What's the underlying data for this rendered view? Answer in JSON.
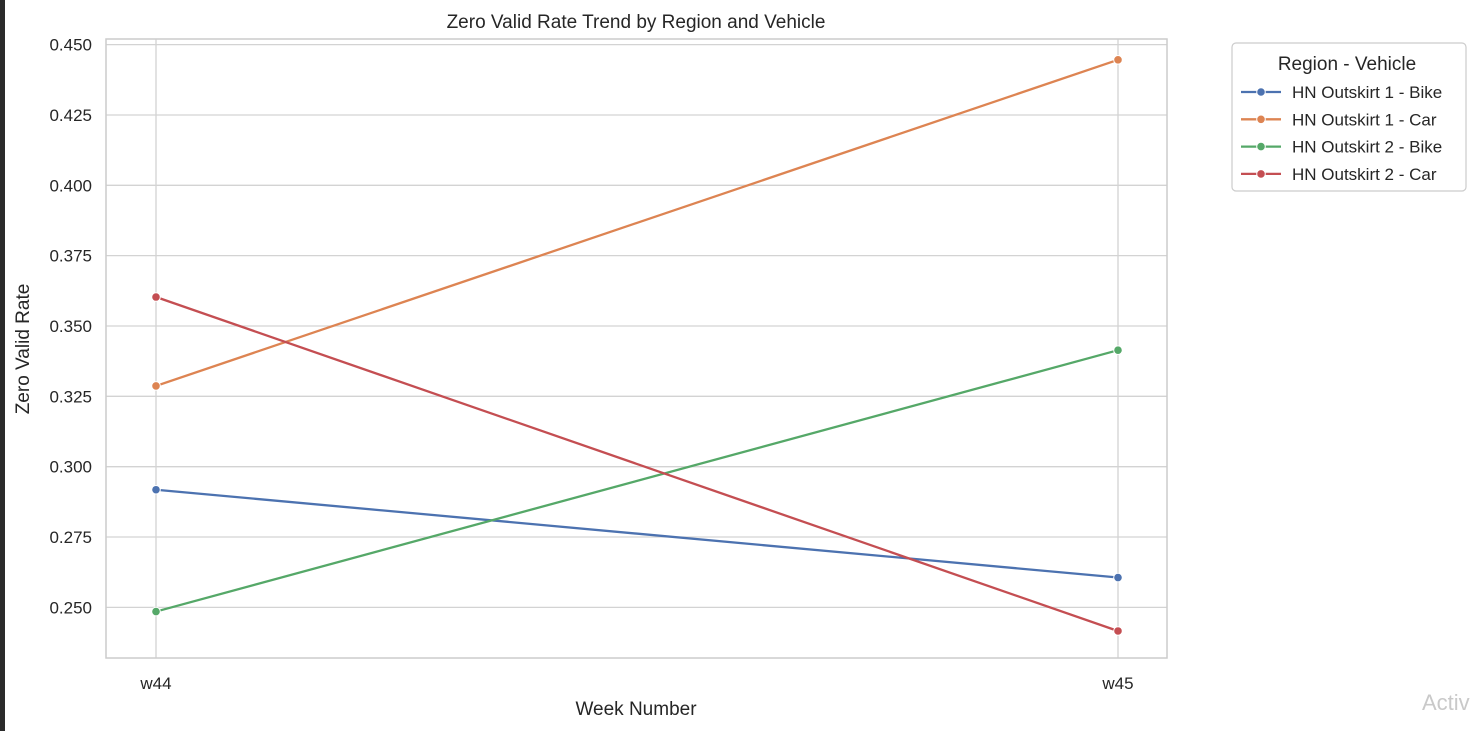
{
  "watermark_text": "Activ",
  "chart_data": {
    "type": "line",
    "title": "Zero Valid Rate Trend by Region and Vehicle",
    "xlabel": "Week Number",
    "ylabel": "Zero Valid Rate",
    "categories": [
      "w44",
      "w45"
    ],
    "ylim": [
      0.232,
      0.452
    ],
    "yticks": [
      0.25,
      0.275,
      0.3,
      0.325,
      0.35,
      0.375,
      0.4,
      0.425,
      0.45
    ],
    "ytick_labels": [
      "0.250",
      "0.275",
      "0.300",
      "0.325",
      "0.350",
      "0.375",
      "0.400",
      "0.425",
      "0.450"
    ],
    "grid": true,
    "legend_title": "Region - Vehicle",
    "legend_position": "outside-top-right",
    "marker": "circle",
    "series": [
      {
        "name": "HN Outskirt 1 - Bike",
        "color": "#4c72b0",
        "values": [
          0.2918,
          0.2606
        ]
      },
      {
        "name": "HN Outskirt 1 - Car",
        "color": "#dd8452",
        "values": [
          0.3287,
          0.4446
        ]
      },
      {
        "name": "HN Outskirt 2 - Bike",
        "color": "#55a868",
        "values": [
          0.2485,
          0.3414
        ]
      },
      {
        "name": "HN Outskirt 2 - Car",
        "color": "#c44e52",
        "values": [
          0.3603,
          0.2416
        ]
      }
    ]
  }
}
